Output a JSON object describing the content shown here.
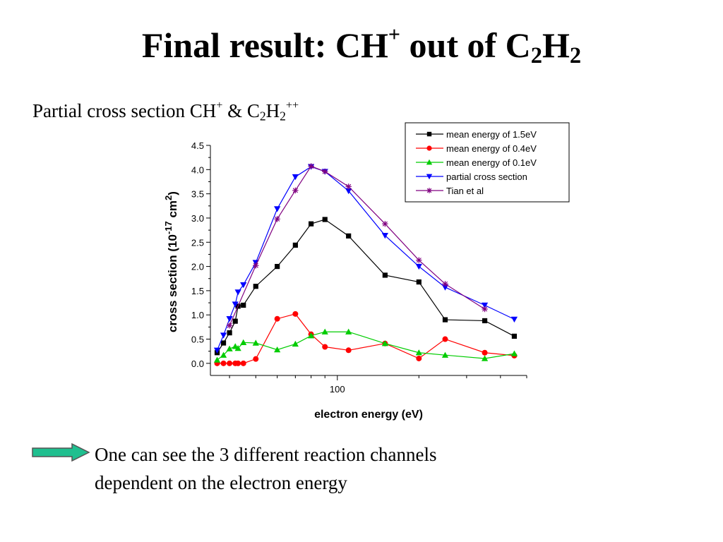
{
  "slide": {
    "title_main": "Final result: CH",
    "title_sup": "+",
    "title_mid": " out of C",
    "title_sub1": "2",
    "title_h": "H",
    "title_sub2": "2",
    "subtitle_main": "Partial cross section CH",
    "subtitle_sup": "+",
    "subtitle_mid": " & C",
    "subtitle_sub1": "2",
    "subtitle_h": "H",
    "subtitle_sub2": "2",
    "subtitle_sup2": "++",
    "bullet_line1": "One can see the 3 different reaction channels",
    "bullet_line2": "dependent on the electron energy",
    "arrow_color": "#1fbf8f"
  },
  "chart_data": {
    "type": "line",
    "xscale": "log",
    "xlim": [
      34,
      500
    ],
    "ylim": [
      -0.25,
      4.5
    ],
    "x_tick_labels": [
      "100"
    ],
    "y_tick_labels": [
      "0.0",
      "0.5",
      "1.0",
      "1.5",
      "2.0",
      "2.5",
      "3.0",
      "3.5",
      "4.0",
      "4.5"
    ],
    "xlabel": "electron energy (eV)",
    "ylabel_main": "cross section (10",
    "ylabel_sup": "-17",
    "ylabel_unit": " cm",
    "ylabel_sup2": "2",
    "ylabel_close": ")",
    "legend_position": "top-right",
    "series": [
      {
        "name": "mean energy of 1.5eV",
        "color": "#000000",
        "marker": "square",
        "x": [
          36,
          38,
          40,
          42,
          43,
          45,
          50,
          60,
          70,
          80,
          90,
          110,
          150,
          200,
          250,
          350,
          450
        ],
        "y": [
          0.22,
          0.42,
          0.63,
          0.87,
          1.18,
          1.2,
          1.59,
          2.0,
          2.44,
          2.88,
          2.97,
          2.63,
          1.82,
          1.68,
          0.9,
          0.88,
          0.56
        ]
      },
      {
        "name": "mean energy of 0.4eV",
        "color": "#ff0000",
        "marker": "circle",
        "x": [
          36,
          38,
          40,
          42,
          43,
          45,
          50,
          60,
          70,
          80,
          90,
          110,
          150,
          200,
          250,
          350,
          450
        ],
        "y": [
          0.0,
          0.0,
          0.0,
          0.0,
          0.0,
          0.0,
          0.09,
          0.92,
          1.02,
          0.6,
          0.34,
          0.27,
          0.41,
          0.1,
          0.5,
          0.22,
          0.16
        ]
      },
      {
        "name": "mean energy of 0.1eV",
        "color": "#00cc00",
        "marker": "triangle-up",
        "x": [
          36,
          38,
          40,
          42,
          43,
          45,
          50,
          60,
          70,
          80,
          90,
          110,
          150,
          200,
          250,
          350,
          450
        ],
        "y": [
          0.07,
          0.17,
          0.3,
          0.35,
          0.31,
          0.43,
          0.42,
          0.28,
          0.4,
          0.57,
          0.65,
          0.65,
          0.41,
          0.22,
          0.17,
          0.1,
          0.2
        ]
      },
      {
        "name": "partial cross section",
        "color": "#0000ff",
        "marker": "triangle-down",
        "x": [
          36,
          38,
          40,
          42,
          43,
          45,
          50,
          60,
          70,
          80,
          90,
          110,
          150,
          200,
          250,
          350,
          450
        ],
        "y": [
          0.27,
          0.58,
          0.92,
          1.22,
          1.47,
          1.62,
          2.08,
          3.19,
          3.85,
          4.06,
          3.96,
          3.56,
          2.64,
          2.0,
          1.57,
          1.2,
          0.91
        ]
      },
      {
        "name": "Tian et al",
        "color": "#800080",
        "marker": "star",
        "x": [
          40,
          50,
          60,
          70,
          80,
          90,
          110,
          150,
          200,
          250,
          350
        ],
        "y": [
          0.78,
          2.02,
          2.98,
          3.57,
          4.07,
          3.96,
          3.65,
          2.88,
          2.13,
          1.64,
          1.12
        ]
      }
    ]
  }
}
